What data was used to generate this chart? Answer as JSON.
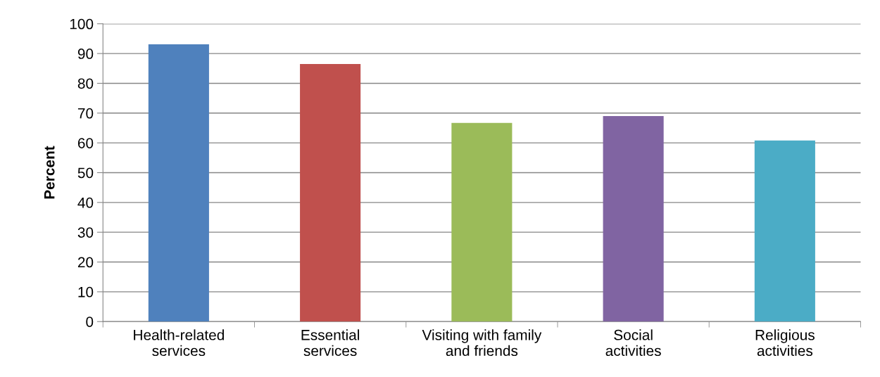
{
  "chart_data": {
    "type": "bar",
    "ylabel": "Percent",
    "categories": [
      "Health-related\nservices",
      "Essential\nservices",
      "Visiting with family\nand friends",
      "Social\nactivities",
      "Religious\nactivities"
    ],
    "values": [
      93.1,
      86.5,
      66.7,
      69.0,
      60.8
    ],
    "colors": [
      "#4f81bd",
      "#c0504d",
      "#9bbb59",
      "#8064a2",
      "#4bacc6"
    ],
    "ylim": [
      0,
      100
    ],
    "yticks": [
      0,
      10,
      20,
      30,
      40,
      50,
      60,
      70,
      80,
      90,
      100
    ],
    "grid": "y"
  }
}
